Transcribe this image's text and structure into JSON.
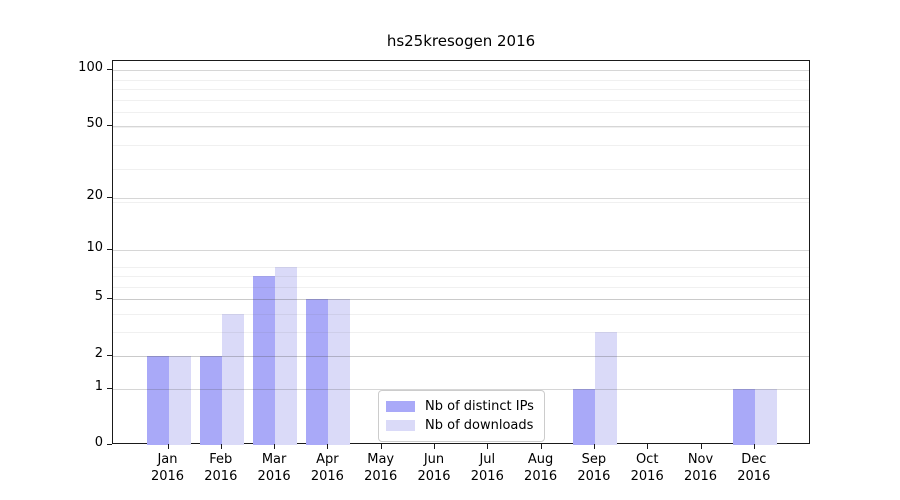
{
  "title": "hs25kresogen 2016",
  "chart_data": {
    "type": "bar",
    "title": "hs25kresogen 2016",
    "categories": [
      "Jan",
      "Feb",
      "Mar",
      "Apr",
      "May",
      "Jun",
      "Jul",
      "Aug",
      "Sep",
      "Oct",
      "Nov",
      "Dec"
    ],
    "year": "2016",
    "series": [
      {
        "name": "Nb of distinct IPs",
        "color": "#a9a9f8",
        "values": [
          2,
          2,
          7,
          5,
          0,
          0,
          0,
          0,
          1,
          0,
          0,
          1
        ]
      },
      {
        "name": "Nb of downloads",
        "color": "#dadaf8",
        "values": [
          2,
          4,
          8,
          5,
          0,
          0,
          0,
          0,
          3,
          0,
          0,
          1
        ]
      }
    ],
    "xlabel": "",
    "ylabel": "",
    "ylim": [
      0,
      112
    ],
    "y_scale": "log10(1+value), 0 at baseline",
    "y_ticks": [
      0,
      1,
      2,
      5,
      10,
      20,
      50,
      100
    ],
    "y_minor_gridlines_1p": [
      3,
      4,
      5,
      6,
      7,
      8,
      9,
      20,
      30,
      40,
      50,
      60,
      70,
      80,
      90
    ],
    "grid": "horizontal major and minor gridlines",
    "legend_position": "inside bottom-center"
  },
  "colors": {
    "bar_distinct_ips": "#a9a9f8",
    "bar_downloads": "#dadaf8",
    "axis": "#1a1a1a",
    "grid_major": "#d6d6d6",
    "grid_minor": "#ececec",
    "legend_border": "#cccccc",
    "text": "#000000",
    "background": "#ffffff"
  }
}
